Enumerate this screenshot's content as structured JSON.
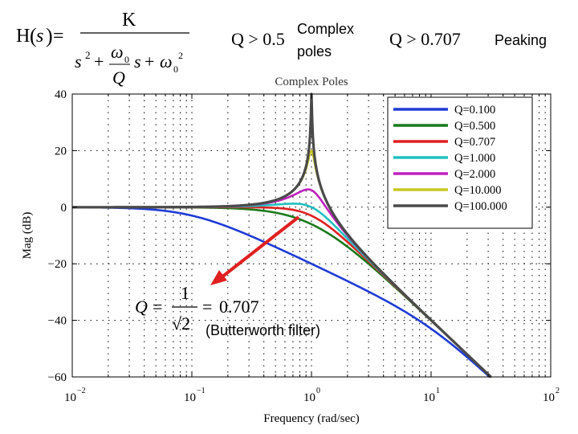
{
  "transfer_function": {
    "lhs_H": "H",
    "lhs_s": "s",
    "lhs_equals": "=",
    "numerator": "K",
    "denominator": {
      "s_term": "s",
      "s_exp": "2",
      "plus1": "+",
      "omega": "ω",
      "omega_sub": "0",
      "Q": "Q",
      "s_term2": "s",
      "plus2": "+",
      "omega2": "ω",
      "omega2_sub": "0",
      "omega2_exp": "2"
    }
  },
  "conditions": {
    "complex": {
      "expr": "Q > 0.5",
      "label_line1": "Complex",
      "label_line2": "poles"
    },
    "peaking": {
      "expr": "Q > 0.707",
      "label": "Peaking"
    }
  },
  "butterworth": {
    "q_lhs": "Q",
    "equals1": "=",
    "num": "1",
    "den": "√2",
    "equals2": "=",
    "value": "0.707",
    "note": "(Butterworth filter)"
  },
  "chart_data": {
    "type": "line",
    "title": "Complex Poles",
    "xlabel": "Frequency (rad/sec)",
    "ylabel": "Mag (dB)",
    "xscale": "log",
    "xlim": [
      0.01,
      100
    ],
    "ylim": [
      -60,
      40
    ],
    "x_ticks": [
      {
        "base": "10",
        "exp": "−2",
        "value": 0.01
      },
      {
        "base": "10",
        "exp": "−1",
        "value": 0.1
      },
      {
        "base": "10",
        "exp": "0",
        "value": 1
      },
      {
        "base": "10",
        "exp": "1",
        "value": 10
      },
      {
        "base": "10",
        "exp": "2",
        "value": 100
      }
    ],
    "y_ticks": [
      {
        "label": "40",
        "value": 40
      },
      {
        "label": "20",
        "value": 20
      },
      {
        "label": "0",
        "value": 0
      },
      {
        "label": "−20",
        "value": -20
      },
      {
        "label": "−40",
        "value": -40
      },
      {
        "label": "−60",
        "value": -60
      }
    ],
    "grid": "dotted",
    "legend_position": "top-right",
    "model": "20*log10(1/sqrt((1-w^2)^2 + (w/Q)^2))",
    "series": [
      {
        "name": "Q=0.100",
        "q": 0.1,
        "color": "#1f3bd6"
      },
      {
        "name": "Q=0.500",
        "q": 0.5,
        "color": "#1a7a1a"
      },
      {
        "name": "Q=0.707",
        "q": 0.707,
        "color": "#e02020"
      },
      {
        "name": "Q=1.000",
        "q": 1.0,
        "color": "#20c0c0"
      },
      {
        "name": "Q=2.000",
        "q": 2.0,
        "color": "#c020c0"
      },
      {
        "name": "Q=10.000",
        "q": 10.0,
        "color": "#c8c820"
      },
      {
        "name": "Q=100.000",
        "q": 100.0,
        "color": "#4a4a4a"
      }
    ]
  },
  "colors": {
    "arrow": "#e02020",
    "axis": "#000000",
    "grid": "#000000"
  }
}
